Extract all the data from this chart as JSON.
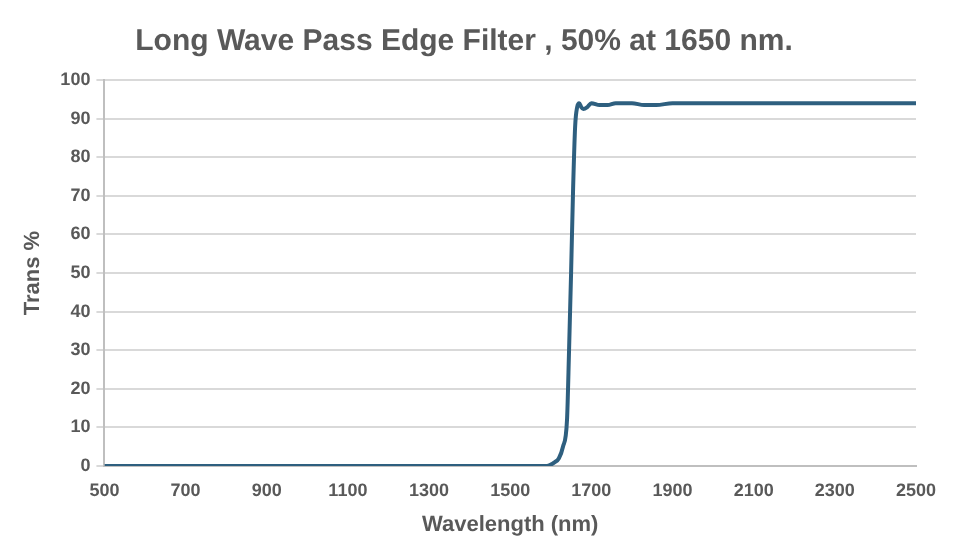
{
  "chart_data": {
    "type": "line",
    "title": "Long Wave Pass Edge Filter , 50% at 1650 nm.",
    "xlabel": "Wavelength (nm)",
    "ylabel": "Trans %",
    "x": [
      500,
      1000,
      1500,
      1590,
      1610,
      1620,
      1630,
      1640,
      1645,
      1650,
      1655,
      1660,
      1665,
      1670,
      1675,
      1680,
      1690,
      1700,
      1720,
      1740,
      1760,
      1780,
      1800,
      1830,
      1860,
      1900,
      1950,
      2000,
      2100,
      2200,
      2300,
      2400,
      2500
    ],
    "series": [
      {
        "color": "#2e5f7f",
        "values": [
          0,
          0,
          0,
          0,
          1,
          2,
          5,
          12,
          30,
          50,
          72,
          88,
          93,
          94,
          93,
          92.5,
          93,
          94,
          93.5,
          93.5,
          94,
          94,
          94,
          93.5,
          93.5,
          94,
          94,
          94,
          94,
          94,
          94,
          94,
          94
        ]
      }
    ],
    "xlim": [
      500,
      2500
    ],
    "xticks": [
      500,
      700,
      900,
      1100,
      1300,
      1500,
      1700,
      1900,
      2100,
      2300,
      2500
    ],
    "ylim": [
      0,
      100
    ],
    "yticks": [
      0,
      10,
      20,
      30,
      40,
      50,
      60,
      70,
      80,
      90,
      100
    ],
    "grid": "y",
    "legend": false,
    "marker": "none",
    "line_style": "solid"
  }
}
